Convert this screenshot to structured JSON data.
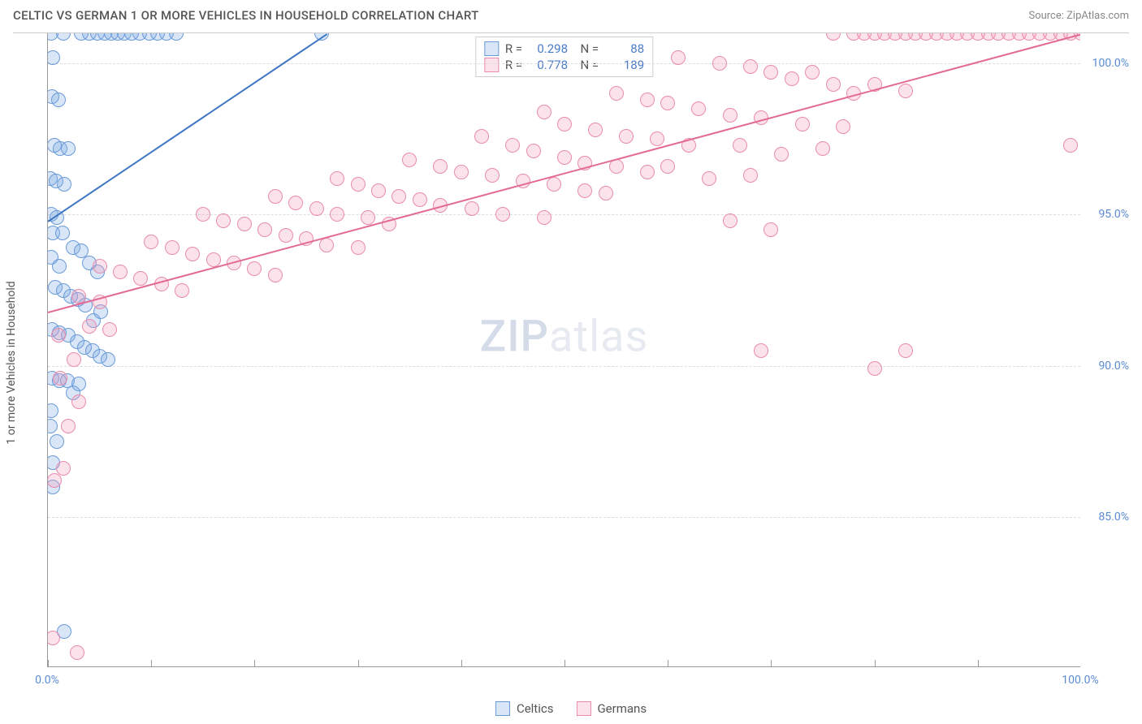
{
  "title": "CELTIC VS GERMAN 1 OR MORE VEHICLES IN HOUSEHOLD CORRELATION CHART",
  "source": "Source: ZipAtlas.com",
  "ylabel": "1 or more Vehicles in Household",
  "watermark_a": "ZIP",
  "watermark_b": "atlas",
  "chart": {
    "type": "scatter",
    "xlim": [
      0,
      100
    ],
    "ylim": [
      80,
      101
    ],
    "yticks": [
      {
        "v": 85,
        "label": "85.0%"
      },
      {
        "v": 90,
        "label": "90.0%"
      },
      {
        "v": 95,
        "label": "95.0%"
      },
      {
        "v": 100,
        "label": "100.0%"
      }
    ],
    "xtick_positions": [
      0,
      10,
      20,
      30,
      40,
      50,
      60,
      70,
      80,
      90,
      100
    ],
    "xlabels": [
      {
        "v": 0,
        "label": "0.0%"
      },
      {
        "v": 100,
        "label": "100.0%"
      }
    ],
    "grid_color": "#dddddd",
    "background_color": "#ffffff",
    "marker_radius": 9,
    "marker_stroke_width": 1.5,
    "series": [
      {
        "name": "Celtics",
        "fill": "rgba(120,165,225,0.28)",
        "stroke": "#6a9ad8",
        "trend_color": "#3f77c4",
        "trend": {
          "x1": 0,
          "y1": 94.8,
          "x2": 27,
          "y2": 101
        },
        "stats": {
          "R": "0.298",
          "N": "88"
        },
        "points": [
          [
            0.3,
            101
          ],
          [
            1.5,
            101
          ],
          [
            3.2,
            101
          ],
          [
            4.0,
            101
          ],
          [
            4.8,
            101
          ],
          [
            5.5,
            101
          ],
          [
            6.1,
            101
          ],
          [
            6.8,
            101
          ],
          [
            7.4,
            101
          ],
          [
            8.1,
            101
          ],
          [
            8.9,
            101
          ],
          [
            9.8,
            101
          ],
          [
            10.6,
            101
          ],
          [
            11.5,
            101
          ],
          [
            12.4,
            101
          ],
          [
            26.5,
            101
          ],
          [
            0.5,
            100.2
          ],
          [
            0.4,
            98.9
          ],
          [
            1.0,
            98.8
          ],
          [
            0.6,
            97.3
          ],
          [
            1.2,
            97.2
          ],
          [
            2.0,
            97.2
          ],
          [
            0.2,
            96.2
          ],
          [
            0.8,
            96.1
          ],
          [
            1.6,
            96.0
          ],
          [
            0.3,
            95.0
          ],
          [
            0.9,
            94.9
          ],
          [
            0.5,
            94.4
          ],
          [
            1.4,
            94.4
          ],
          [
            0.3,
            93.6
          ],
          [
            1.1,
            93.3
          ],
          [
            2.4,
            93.9
          ],
          [
            3.2,
            93.8
          ],
          [
            4.0,
            93.4
          ],
          [
            4.8,
            93.1
          ],
          [
            0.7,
            92.6
          ],
          [
            1.5,
            92.5
          ],
          [
            2.2,
            92.3
          ],
          [
            2.9,
            92.2
          ],
          [
            3.6,
            92.0
          ],
          [
            4.4,
            91.5
          ],
          [
            5.1,
            91.8
          ],
          [
            0.4,
            91.2
          ],
          [
            1.1,
            91.1
          ],
          [
            2.0,
            91.0
          ],
          [
            2.8,
            90.8
          ],
          [
            3.5,
            90.6
          ],
          [
            4.3,
            90.5
          ],
          [
            5.0,
            90.3
          ],
          [
            5.8,
            90.2
          ],
          [
            0.4,
            89.6
          ],
          [
            1.1,
            89.5
          ],
          [
            1.9,
            89.5
          ],
          [
            2.4,
            89.1
          ],
          [
            3.0,
            89.4
          ],
          [
            0.3,
            88.5
          ],
          [
            0.2,
            88.0
          ],
          [
            0.9,
            87.5
          ],
          [
            0.5,
            86.8
          ],
          [
            0.5,
            86.0
          ],
          [
            1.6,
            81.2
          ]
        ]
      },
      {
        "name": "Germans",
        "fill": "rgba(245,160,190,0.30)",
        "stroke": "#e98bad",
        "trend_color": "#e36a96",
        "trend": {
          "x1": 0,
          "y1": 91.8,
          "x2": 100,
          "y2": 101
        },
        "stats": {
          "R": "0.778",
          "N": "189"
        },
        "points": [
          [
            76,
            101
          ],
          [
            78,
            101
          ],
          [
            79,
            101
          ],
          [
            80,
            101
          ],
          [
            81,
            101
          ],
          [
            82,
            101
          ],
          [
            83,
            101
          ],
          [
            84,
            101
          ],
          [
            85,
            101
          ],
          [
            86,
            101
          ],
          [
            87,
            101
          ],
          [
            88,
            101
          ],
          [
            89,
            101
          ],
          [
            90,
            101
          ],
          [
            91,
            101
          ],
          [
            92,
            101
          ],
          [
            93,
            101
          ],
          [
            94,
            101
          ],
          [
            95,
            101
          ],
          [
            96,
            101
          ],
          [
            97,
            101
          ],
          [
            98,
            101
          ],
          [
            99,
            101
          ],
          [
            100,
            101
          ],
          [
            61,
            100.2
          ],
          [
            65,
            100.0
          ],
          [
            68,
            99.9
          ],
          [
            70,
            99.7
          ],
          [
            72,
            99.5
          ],
          [
            74,
            99.7
          ],
          [
            76,
            99.3
          ],
          [
            78,
            99.0
          ],
          [
            80,
            99.3
          ],
          [
            83,
            99.1
          ],
          [
            55,
            99.0
          ],
          [
            58,
            98.8
          ],
          [
            60,
            98.7
          ],
          [
            63,
            98.5
          ],
          [
            66,
            98.3
          ],
          [
            69,
            98.2
          ],
          [
            73,
            98.0
          ],
          [
            77,
            97.9
          ],
          [
            48,
            98.4
          ],
          [
            50,
            98.0
          ],
          [
            53,
            97.8
          ],
          [
            56,
            97.6
          ],
          [
            59,
            97.5
          ],
          [
            62,
            97.3
          ],
          [
            67,
            97.3
          ],
          [
            71,
            97.0
          ],
          [
            75,
            97.2
          ],
          [
            42,
            97.6
          ],
          [
            45,
            97.3
          ],
          [
            47,
            97.1
          ],
          [
            50,
            96.9
          ],
          [
            52,
            96.7
          ],
          [
            55,
            96.6
          ],
          [
            58,
            96.4
          ],
          [
            60,
            96.6
          ],
          [
            64,
            96.2
          ],
          [
            68,
            96.3
          ],
          [
            99,
            97.3
          ],
          [
            35,
            96.8
          ],
          [
            38,
            96.6
          ],
          [
            40,
            96.4
          ],
          [
            43,
            96.3
          ],
          [
            46,
            96.1
          ],
          [
            49,
            96.0
          ],
          [
            52,
            95.8
          ],
          [
            54,
            95.7
          ],
          [
            28,
            96.2
          ],
          [
            30,
            96.0
          ],
          [
            32,
            95.8
          ],
          [
            34,
            95.6
          ],
          [
            36,
            95.5
          ],
          [
            38,
            95.3
          ],
          [
            41,
            95.2
          ],
          [
            44,
            95.0
          ],
          [
            48,
            94.9
          ],
          [
            22,
            95.6
          ],
          [
            24,
            95.4
          ],
          [
            26,
            95.2
          ],
          [
            28,
            95.0
          ],
          [
            31,
            94.9
          ],
          [
            33,
            94.7
          ],
          [
            15,
            95.0
          ],
          [
            17,
            94.8
          ],
          [
            19,
            94.7
          ],
          [
            21,
            94.5
          ],
          [
            23,
            94.3
          ],
          [
            25,
            94.2
          ],
          [
            27,
            94.0
          ],
          [
            30,
            93.9
          ],
          [
            10,
            94.1
          ],
          [
            12,
            93.9
          ],
          [
            14,
            93.7
          ],
          [
            16,
            93.5
          ],
          [
            18,
            93.4
          ],
          [
            20,
            93.2
          ],
          [
            22,
            93.0
          ],
          [
            5,
            93.3
          ],
          [
            7,
            93.1
          ],
          [
            9,
            92.9
          ],
          [
            11,
            92.7
          ],
          [
            13,
            92.5
          ],
          [
            70,
            94.5
          ],
          [
            66,
            94.8
          ],
          [
            3,
            92.3
          ],
          [
            5,
            92.1
          ],
          [
            4,
            91.3
          ],
          [
            6,
            91.2
          ],
          [
            1.0,
            91.0
          ],
          [
            2.5,
            90.2
          ],
          [
            1.2,
            89.6
          ],
          [
            69,
            90.5
          ],
          [
            83,
            90.5
          ],
          [
            80,
            89.9
          ],
          [
            1.5,
            86.6
          ],
          [
            0.6,
            86.2
          ],
          [
            0.5,
            81.0
          ],
          [
            2.8,
            80.5
          ],
          [
            2.0,
            88.0
          ],
          [
            3.0,
            88.8
          ]
        ]
      }
    ]
  },
  "legend_bottom": [
    {
      "label": "Celtics",
      "fill": "rgba(120,165,225,0.28)",
      "stroke": "#6a9ad8"
    },
    {
      "label": "Germans",
      "fill": "rgba(245,160,190,0.30)",
      "stroke": "#e98bad"
    }
  ]
}
